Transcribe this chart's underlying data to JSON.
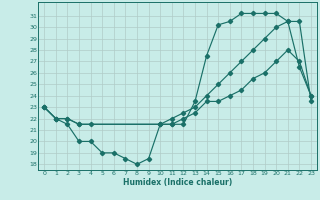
{
  "xlabel": "Humidex (Indice chaleur)",
  "xlim": [
    -0.5,
    23.5
  ],
  "ylim": [
    17.5,
    32.2
  ],
  "xticks": [
    0,
    1,
    2,
    3,
    4,
    5,
    6,
    7,
    8,
    9,
    10,
    11,
    12,
    13,
    14,
    15,
    16,
    17,
    18,
    19,
    20,
    21,
    22,
    23
  ],
  "yticks": [
    18,
    19,
    20,
    21,
    22,
    23,
    24,
    25,
    26,
    27,
    28,
    29,
    30,
    31
  ],
  "bg_color": "#c8ece8",
  "line_color": "#1a7068",
  "grid_color": "#b0ccc8",
  "line1_x": [
    0,
    1,
    2,
    3,
    4,
    5,
    6,
    7,
    8,
    9,
    10,
    11,
    12,
    13,
    14,
    15,
    16,
    17,
    18,
    19,
    20,
    21,
    22,
    23
  ],
  "line1_y": [
    23,
    22,
    21.5,
    20,
    20,
    19,
    19,
    18.5,
    18,
    18.5,
    21.5,
    21.5,
    21.5,
    23.5,
    27.5,
    30.2,
    30.5,
    31.2,
    31.2,
    31.2,
    31.2,
    30.5,
    26.5,
    24
  ],
  "line2_x": [
    0,
    1,
    2,
    3,
    4,
    10,
    11,
    12,
    13,
    14,
    15,
    16,
    17,
    18,
    19,
    20,
    21,
    22,
    23
  ],
  "line2_y": [
    23,
    22,
    22,
    21.5,
    21.5,
    21.5,
    21.5,
    22,
    22.5,
    23.5,
    23.5,
    24,
    24.5,
    25.5,
    26,
    27,
    28,
    27,
    24
  ],
  "line3_x": [
    0,
    1,
    2,
    3,
    10,
    11,
    12,
    13,
    14,
    15,
    16,
    17,
    18,
    19,
    20,
    21,
    22,
    23
  ],
  "line3_y": [
    23,
    22,
    22,
    21.5,
    21.5,
    22,
    22.5,
    23,
    24,
    25,
    26,
    27,
    28,
    29,
    30,
    30.5,
    30.5,
    23.5
  ]
}
